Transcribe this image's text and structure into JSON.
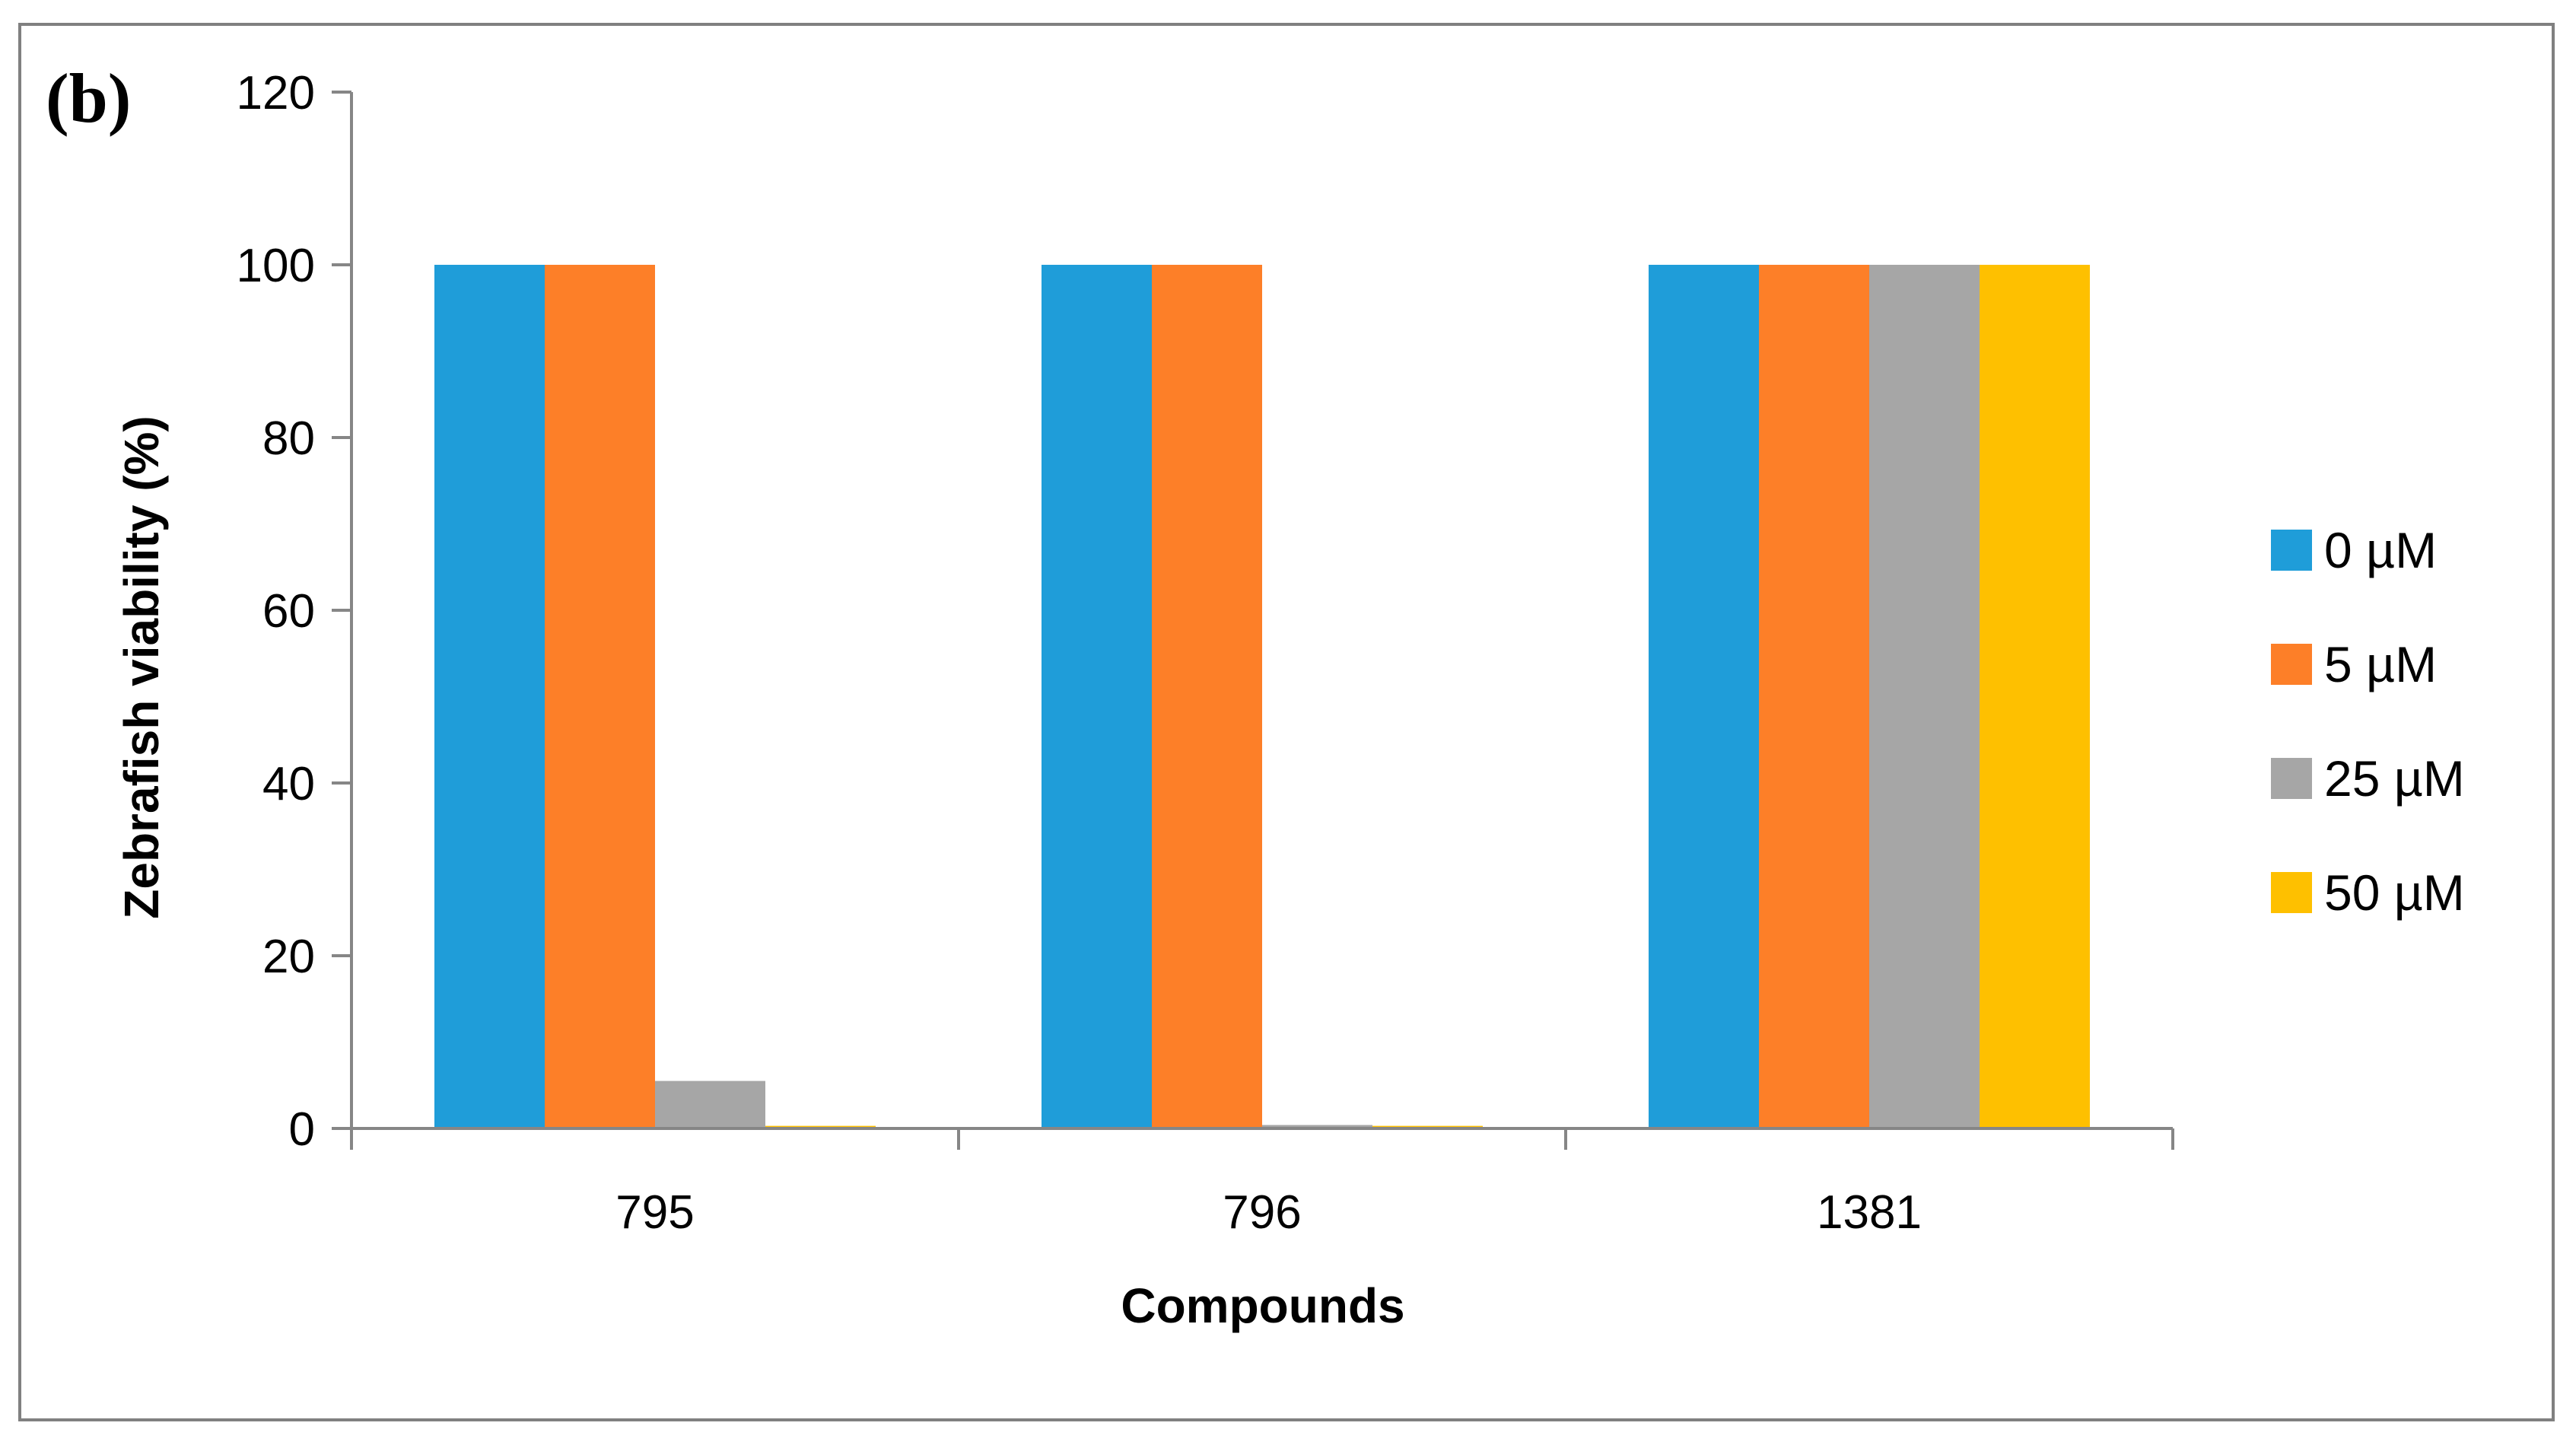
{
  "panel_label": "(b)",
  "chart_data": {
    "type": "bar",
    "title": "",
    "xlabel": "Compounds",
    "ylabel": "Zebrafish viability (%)",
    "ylim": [
      0,
      120
    ],
    "yticks": [
      0,
      20,
      40,
      60,
      80,
      100,
      120
    ],
    "categories": [
      "795",
      "796",
      "1381"
    ],
    "series": [
      {
        "name": "0 µM",
        "color": "#1f9dd9",
        "values": [
          100,
          100,
          100
        ]
      },
      {
        "name": "5 µM",
        "color": "#fd7f28",
        "values": [
          100,
          100,
          100
        ]
      },
      {
        "name": "25 µM",
        "color": "#a6a6a6",
        "values": [
          5.5,
          0.4,
          100
        ]
      },
      {
        "name": "50 µM",
        "color": "#fec000",
        "values": [
          0.3,
          0.3,
          100
        ]
      }
    ],
    "grid": false,
    "legend_position": "right"
  }
}
